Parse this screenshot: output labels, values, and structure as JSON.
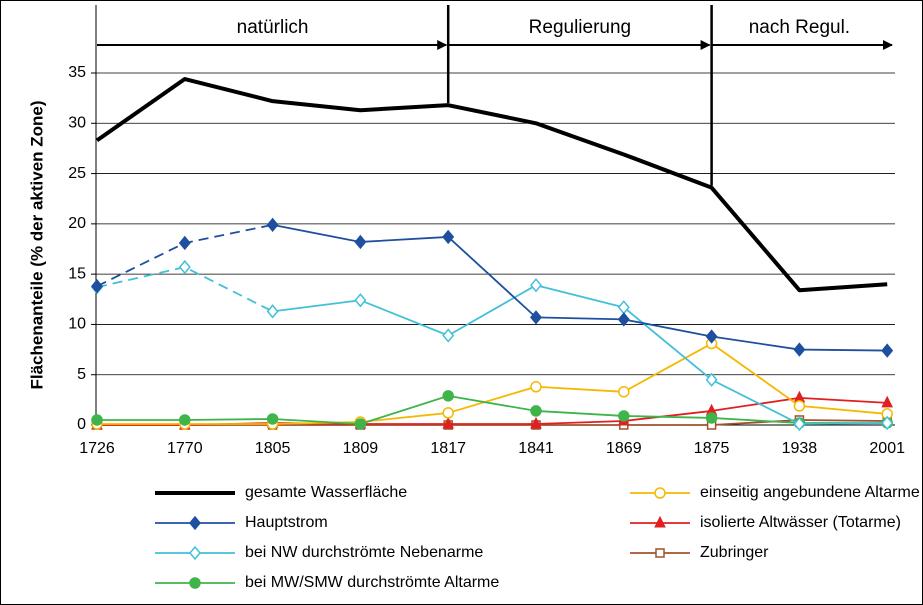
{
  "chart_data": {
    "type": "line",
    "ylabel": "Flächenanteile (% der aktiven Zone)",
    "categories": [
      "1726",
      "1770",
      "1805",
      "1809",
      "1817",
      "1841",
      "1869",
      "1875",
      "1938",
      "2001"
    ],
    "ylim": [
      0,
      35
    ],
    "yticks": [
      0,
      5,
      10,
      15,
      20,
      25,
      30,
      35
    ],
    "grid": true,
    "annotations": [
      {
        "text": "natürlich",
        "from": "1726",
        "to": "1817"
      },
      {
        "text": "Regulierung",
        "from": "1817",
        "to": "1875"
      },
      {
        "text": "nach Regul.",
        "from": "1875",
        "to": "2001"
      }
    ],
    "series": [
      {
        "name": "gesamte Wasserfläche",
        "color": "#000000",
        "marker": "none",
        "width": 4,
        "values": [
          28.3,
          34.4,
          32.2,
          31.3,
          31.8,
          30.0,
          26.9,
          23.6,
          13.4,
          14.0
        ]
      },
      {
        "name": "Hauptstrom",
        "color": "#1f4fa0",
        "marker": "diamond",
        "dashed_segments": 2,
        "values": [
          13.8,
          18.1,
          19.9,
          18.2,
          18.7,
          10.7,
          10.5,
          8.8,
          7.5,
          7.4
        ]
      },
      {
        "name": "bei NW durchströmte Nebenarme",
        "color": "#41c0d8",
        "marker": "diamond-open",
        "dashed_segments": 2,
        "values": [
          13.7,
          15.7,
          11.3,
          12.4,
          8.9,
          13.9,
          11.7,
          4.5,
          0.1,
          0.2
        ]
      },
      {
        "name": "bei MW/SMW durchströmte Altarme",
        "color": "#3fb44a",
        "marker": "circle",
        "values": [
          0.5,
          0.5,
          0.6,
          0.1,
          2.9,
          1.4,
          0.9,
          0.7,
          0.2,
          0.2
        ]
      },
      {
        "name": "einseitig angebundene Altarme",
        "color": "#f5b800",
        "marker": "circle-open",
        "values": [
          0.1,
          0.1,
          0.1,
          0.3,
          1.2,
          3.8,
          3.3,
          8.1,
          1.9,
          1.1
        ]
      },
      {
        "name": "isolierte Altwässer (Totarme)",
        "color": "#e02020",
        "marker": "triangle",
        "values": [
          0,
          0,
          0.2,
          0.1,
          0.1,
          0.1,
          0.4,
          1.4,
          2.7,
          2.2
        ]
      },
      {
        "name": "Zubringer",
        "color": "#a0522d",
        "marker": "square-open",
        "values": [
          0,
          0,
          0,
          0,
          0,
          0,
          0,
          0,
          0.5,
          0.4
        ]
      }
    ]
  }
}
